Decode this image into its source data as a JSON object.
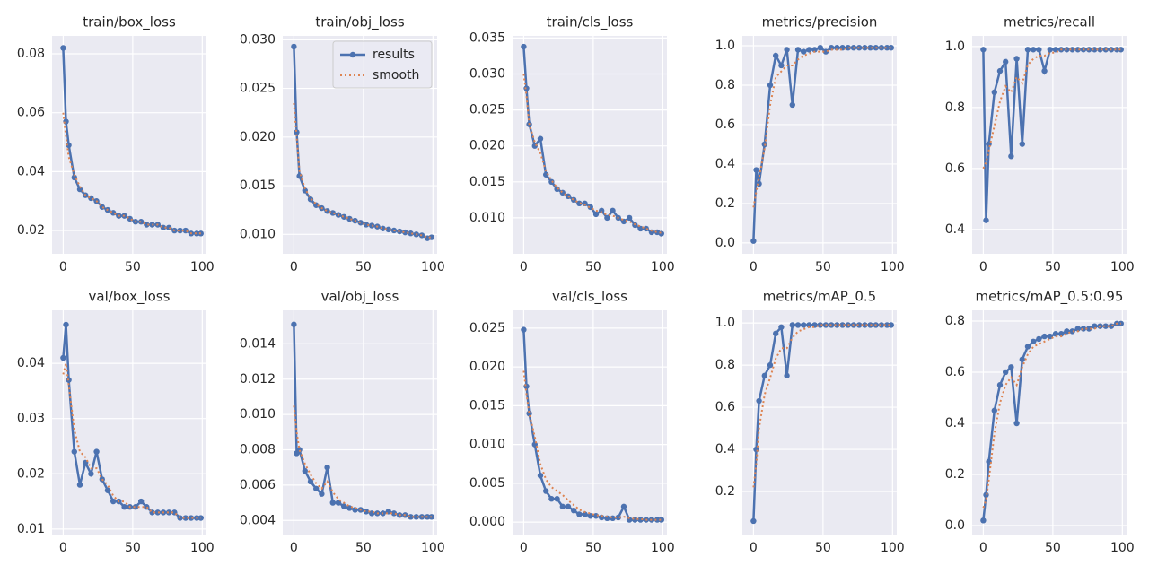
{
  "chart_data": [
    {
      "type": "line",
      "title": "train/box_loss",
      "xlim": [
        -8,
        103
      ],
      "xticks": [
        0,
        50,
        100
      ],
      "ylim": [
        0.0121,
        0.0861
      ],
      "yticks": [
        0.02,
        0.04,
        0.06,
        0.08
      ],
      "grid": true,
      "x": [
        0,
        2,
        4,
        8,
        12,
        16,
        20,
        24,
        28,
        32,
        36,
        40,
        44,
        48,
        52,
        56,
        60,
        64,
        68,
        72,
        76,
        80,
        84,
        88,
        92,
        96,
        99
      ],
      "series": [
        {
          "color": "#4c72b0",
          "values": [
            0.082,
            0.057,
            0.049,
            0.038,
            0.034,
            0.032,
            0.031,
            0.03,
            0.028,
            0.027,
            0.026,
            0.025,
            0.025,
            0.024,
            0.023,
            0.023,
            0.022,
            0.022,
            0.022,
            0.021,
            0.021,
            0.02,
            0.02,
            0.02,
            0.019,
            0.019,
            0.019
          ]
        },
        {
          "color": "#dd8452",
          "values": [
            0.06,
            0.052,
            0.045,
            0.039,
            0.035,
            0.032,
            0.031,
            0.03,
            0.028,
            0.027,
            0.026,
            0.025,
            0.025,
            0.024,
            0.023,
            0.023,
            0.022,
            0.022,
            0.022,
            0.021,
            0.021,
            0.02,
            0.02,
            0.02,
            0.019,
            0.019,
            0.019
          ]
        }
      ]
    },
    {
      "type": "line",
      "title": "train/obj_loss",
      "xlim": [
        -8,
        103
      ],
      "xticks": [
        0,
        50,
        100
      ],
      "ylim": [
        0.008,
        0.0304
      ],
      "yticks": [
        {
          "value": 0.01,
          "label": "0.010"
        },
        0.015,
        {
          "value": 0.02,
          "label": "0.020"
        },
        0.025,
        {
          "value": 0.03,
          "label": "0.030"
        }
      ],
      "grid": true,
      "legend": "upper right",
      "x": [
        0,
        2,
        4,
        8,
        12,
        16,
        20,
        24,
        28,
        32,
        36,
        40,
        44,
        48,
        52,
        56,
        60,
        64,
        68,
        72,
        76,
        80,
        84,
        88,
        92,
        96,
        99
      ],
      "series": [
        {
          "name": "results",
          "color": "#4c72b0",
          "values": [
            0.0293,
            0.0205,
            0.016,
            0.0145,
            0.0136,
            0.013,
            0.0127,
            0.0124,
            0.0122,
            0.012,
            0.0118,
            0.0116,
            0.0114,
            0.0112,
            0.011,
            0.0109,
            0.0108,
            0.0106,
            0.0105,
            0.0104,
            0.0103,
            0.0102,
            0.0101,
            0.01,
            0.0099,
            0.0096,
            0.0097
          ]
        },
        {
          "name": "smooth",
          "color": "#dd8452",
          "values": [
            0.0235,
            0.02,
            0.0165,
            0.0147,
            0.0137,
            0.0131,
            0.0127,
            0.0124,
            0.0122,
            0.012,
            0.0118,
            0.0116,
            0.0114,
            0.0112,
            0.011,
            0.0109,
            0.0108,
            0.0106,
            0.0105,
            0.0104,
            0.0103,
            0.0102,
            0.0101,
            0.01,
            0.0099,
            0.0097,
            0.0097
          ]
        }
      ]
    },
    {
      "type": "line",
      "title": "train/cls_loss",
      "xlim": [
        -8,
        103
      ],
      "xticks": [
        0,
        50,
        100
      ],
      "ylim": [
        0.005,
        0.0353
      ],
      "yticks": [
        {
          "value": 0.01,
          "label": "0.010"
        },
        0.015,
        {
          "value": 0.02,
          "label": "0.020"
        },
        0.025,
        {
          "value": 0.03,
          "label": "0.030"
        },
        0.035
      ],
      "grid": true,
      "x": [
        0,
        2,
        4,
        8,
        12,
        16,
        20,
        24,
        28,
        32,
        36,
        40,
        44,
        48,
        52,
        56,
        60,
        64,
        68,
        72,
        76,
        80,
        84,
        88,
        92,
        96,
        99
      ],
      "series": [
        {
          "color": "#4c72b0",
          "values": [
            0.0338,
            0.028,
            0.023,
            0.02,
            0.021,
            0.016,
            0.015,
            0.014,
            0.0135,
            0.013,
            0.0125,
            0.012,
            0.012,
            0.0115,
            0.0105,
            0.011,
            0.01,
            0.011,
            0.01,
            0.0095,
            0.01,
            0.009,
            0.0085,
            0.0085,
            0.008,
            0.008,
            0.0078
          ]
        },
        {
          "color": "#dd8452",
          "values": [
            0.03,
            0.027,
            0.023,
            0.0205,
            0.019,
            0.0165,
            0.0152,
            0.0142,
            0.0135,
            0.013,
            0.0125,
            0.0121,
            0.0118,
            0.0114,
            0.011,
            0.0108,
            0.0104,
            0.0103,
            0.01,
            0.0097,
            0.0095,
            0.0091,
            0.0088,
            0.0085,
            0.0082,
            0.008,
            0.0079
          ]
        }
      ]
    },
    {
      "type": "line",
      "title": "metrics/precision",
      "xlim": [
        -8,
        103
      ],
      "xticks": [
        0,
        50,
        100
      ],
      "ylim": [
        -0.055,
        1.05
      ],
      "yticks": [
        {
          "value": 0,
          "label": "0.0"
        },
        0.2,
        0.4,
        0.6,
        0.8,
        {
          "value": 1,
          "label": "1.0"
        }
      ],
      "grid": true,
      "x": [
        0,
        2,
        4,
        8,
        12,
        16,
        20,
        24,
        28,
        32,
        36,
        40,
        44,
        48,
        52,
        56,
        60,
        64,
        68,
        72,
        76,
        80,
        84,
        88,
        92,
        96,
        99
      ],
      "series": [
        {
          "color": "#4c72b0",
          "values": [
            0.01,
            0.37,
            0.3,
            0.5,
            0.8,
            0.95,
            0.9,
            0.98,
            0.7,
            0.98,
            0.97,
            0.98,
            0.98,
            0.99,
            0.97,
            0.99,
            0.99,
            0.99,
            0.99,
            0.99,
            0.99,
            0.99,
            0.99,
            0.99,
            0.99,
            0.99,
            0.99
          ]
        },
        {
          "color": "#dd8452",
          "values": [
            0.18,
            0.26,
            0.33,
            0.48,
            0.7,
            0.84,
            0.87,
            0.9,
            0.9,
            0.93,
            0.95,
            0.96,
            0.97,
            0.97,
            0.97,
            0.98,
            0.98,
            0.98,
            0.99,
            0.99,
            0.99,
            0.99,
            0.99,
            0.99,
            0.99,
            0.99,
            0.99
          ]
        }
      ]
    },
    {
      "type": "line",
      "title": "metrics/recall",
      "xlim": [
        -8,
        103
      ],
      "xticks": [
        0,
        50,
        100
      ],
      "ylim": [
        0.32,
        1.035
      ],
      "yticks": [
        0.4,
        0.6,
        0.8,
        {
          "value": 1,
          "label": "1.0"
        }
      ],
      "grid": true,
      "x": [
        0,
        2,
        4,
        8,
        12,
        16,
        20,
        24,
        28,
        32,
        36,
        40,
        44,
        48,
        52,
        56,
        60,
        64,
        68,
        72,
        76,
        80,
        84,
        88,
        92,
        96,
        99
      ],
      "series": [
        {
          "color": "#4c72b0",
          "values": [
            0.99,
            0.43,
            0.68,
            0.85,
            0.92,
            0.95,
            0.64,
            0.96,
            0.68,
            0.99,
            0.99,
            0.99,
            0.92,
            0.99,
            0.99,
            0.99,
            0.99,
            0.99,
            0.99,
            0.99,
            0.99,
            0.99,
            0.99,
            0.99,
            0.99,
            0.99,
            0.99
          ]
        },
        {
          "color": "#dd8452",
          "values": [
            0.6,
            0.62,
            0.66,
            0.74,
            0.82,
            0.87,
            0.85,
            0.9,
            0.88,
            0.94,
            0.96,
            0.97,
            0.97,
            0.98,
            0.98,
            0.99,
            0.99,
            0.99,
            0.99,
            0.99,
            0.99,
            0.99,
            0.99,
            0.99,
            0.99,
            0.99,
            0.99
          ]
        }
      ]
    },
    {
      "type": "line",
      "title": "val/box_loss",
      "xlim": [
        -8,
        103
      ],
      "xticks": [
        0,
        50,
        100
      ],
      "ylim": [
        0.009,
        0.0496
      ],
      "yticks": [
        0.01,
        0.02,
        0.03,
        0.04
      ],
      "grid": true,
      "x": [
        0,
        2,
        4,
        8,
        12,
        16,
        20,
        24,
        28,
        32,
        36,
        40,
        44,
        48,
        52,
        56,
        60,
        64,
        68,
        72,
        76,
        80,
        84,
        88,
        92,
        96,
        99
      ],
      "series": [
        {
          "color": "#4c72b0",
          "values": [
            0.041,
            0.047,
            0.037,
            0.024,
            0.018,
            0.022,
            0.02,
            0.024,
            0.019,
            0.017,
            0.015,
            0.015,
            0.014,
            0.014,
            0.014,
            0.015,
            0.014,
            0.013,
            0.013,
            0.013,
            0.013,
            0.013,
            0.012,
            0.012,
            0.012,
            0.012,
            0.012
          ]
        },
        {
          "color": "#dd8452",
          "values": [
            0.038,
            0.04,
            0.036,
            0.028,
            0.024,
            0.023,
            0.021,
            0.021,
            0.019,
            0.018,
            0.016,
            0.015,
            0.015,
            0.014,
            0.014,
            0.014,
            0.014,
            0.013,
            0.013,
            0.013,
            0.013,
            0.013,
            0.012,
            0.012,
            0.012,
            0.012,
            0.012
          ]
        }
      ]
    },
    {
      "type": "line",
      "title": "val/obj_loss",
      "xlim": [
        -8,
        103
      ],
      "xticks": [
        0,
        50,
        100
      ],
      "ylim": [
        0.0032,
        0.0159
      ],
      "yticks": [
        0.004,
        0.006,
        0.008,
        {
          "value": 0.01,
          "label": "0.010"
        },
        0.012,
        0.014
      ],
      "grid": true,
      "x": [
        0,
        2,
        4,
        8,
        12,
        16,
        20,
        24,
        28,
        32,
        36,
        40,
        44,
        48,
        52,
        56,
        60,
        64,
        68,
        72,
        76,
        80,
        84,
        88,
        92,
        96,
        99
      ],
      "series": [
        {
          "color": "#4c72b0",
          "values": [
            0.0151,
            0.0078,
            0.008,
            0.0068,
            0.0062,
            0.0058,
            0.0055,
            0.007,
            0.005,
            0.005,
            0.0048,
            0.0047,
            0.0046,
            0.0046,
            0.0045,
            0.0044,
            0.0044,
            0.0044,
            0.0045,
            0.0044,
            0.0043,
            0.0043,
            0.0042,
            0.0042,
            0.0042,
            0.0042,
            0.0042
          ]
        },
        {
          "color": "#dd8452",
          "values": [
            0.0105,
            0.009,
            0.008,
            0.0072,
            0.0066,
            0.0061,
            0.0058,
            0.0062,
            0.0056,
            0.0052,
            0.005,
            0.0048,
            0.0047,
            0.0046,
            0.0045,
            0.0045,
            0.0044,
            0.0044,
            0.0044,
            0.0044,
            0.0043,
            0.0043,
            0.0042,
            0.0042,
            0.0042,
            0.0042,
            0.0042
          ]
        }
      ]
    },
    {
      "type": "line",
      "title": "val/cls_loss",
      "xlim": [
        -8,
        103
      ],
      "xticks": [
        0,
        50,
        100
      ],
      "ylim": [
        -0.0016,
        0.0273
      ],
      "yticks": [
        {
          "value": 0,
          "label": "0.000"
        },
        0.005,
        {
          "value": 0.01,
          "label": "0.010"
        },
        0.015,
        {
          "value": 0.02,
          "label": "0.020"
        },
        0.025
      ],
      "grid": true,
      "x": [
        0,
        2,
        4,
        8,
        12,
        16,
        20,
        24,
        28,
        32,
        36,
        40,
        44,
        48,
        52,
        56,
        60,
        64,
        68,
        72,
        76,
        80,
        84,
        88,
        92,
        96,
        99
      ],
      "series": [
        {
          "color": "#4c72b0",
          "values": [
            0.0248,
            0.0175,
            0.014,
            0.01,
            0.006,
            0.004,
            0.003,
            0.003,
            0.002,
            0.002,
            0.0015,
            0.001,
            0.001,
            0.0008,
            0.0008,
            0.0006,
            0.0005,
            0.0005,
            0.0006,
            0.002,
            0.0003,
            0.0003,
            0.0003,
            0.0003,
            0.0003,
            0.0003,
            0.0003
          ]
        },
        {
          "color": "#dd8452",
          "values": [
            0.0195,
            0.0165,
            0.014,
            0.011,
            0.0075,
            0.0055,
            0.0045,
            0.004,
            0.0035,
            0.0028,
            0.0022,
            0.0016,
            0.0013,
            0.0011,
            0.0009,
            0.0008,
            0.0007,
            0.0006,
            0.0006,
            0.0007,
            0.0005,
            0.0004,
            0.0004,
            0.0003,
            0.0003,
            0.0003,
            0.0003
          ]
        }
      ]
    },
    {
      "type": "line",
      "title": "metrics/mAP_0.5",
      "xlim": [
        -8,
        103
      ],
      "xticks": [
        0,
        50,
        100
      ],
      "ylim": [
        -0.004,
        1.06
      ],
      "yticks": [
        0.2,
        0.4,
        0.6,
        0.8,
        {
          "value": 1,
          "label": "1.0"
        }
      ],
      "grid": true,
      "x": [
        0,
        2,
        4,
        8,
        12,
        16,
        20,
        24,
        28,
        32,
        36,
        40,
        44,
        48,
        52,
        56,
        60,
        64,
        68,
        72,
        76,
        80,
        84,
        88,
        92,
        96,
        99
      ],
      "series": [
        {
          "color": "#4c72b0",
          "values": [
            0.06,
            0.4,
            0.63,
            0.75,
            0.8,
            0.95,
            0.98,
            0.75,
            0.99,
            0.99,
            0.99,
            0.99,
            0.99,
            0.99,
            0.99,
            0.99,
            0.99,
            0.99,
            0.99,
            0.99,
            0.99,
            0.99,
            0.99,
            0.99,
            0.99,
            0.99,
            0.99
          ]
        },
        {
          "color": "#dd8452",
          "values": [
            0.22,
            0.33,
            0.5,
            0.66,
            0.74,
            0.83,
            0.88,
            0.88,
            0.93,
            0.96,
            0.97,
            0.98,
            0.98,
            0.99,
            0.99,
            0.99,
            0.99,
            0.99,
            0.99,
            0.99,
            0.99,
            0.99,
            0.99,
            0.99,
            0.99,
            0.99,
            0.99
          ]
        }
      ]
    },
    {
      "type": "line",
      "title": "metrics/mAP_0.5:0.95",
      "xlim": [
        -8,
        103
      ],
      "xticks": [
        0,
        50,
        100
      ],
      "ylim": [
        -0.035,
        0.842
      ],
      "yticks": [
        {
          "value": 0,
          "label": "0.0"
        },
        0.2,
        0.4,
        0.6,
        0.8
      ],
      "grid": true,
      "x": [
        0,
        2,
        4,
        8,
        12,
        16,
        20,
        24,
        28,
        32,
        36,
        40,
        44,
        48,
        52,
        56,
        60,
        64,
        68,
        72,
        76,
        80,
        84,
        88,
        92,
        96,
        99
      ],
      "series": [
        {
          "color": "#4c72b0",
          "values": [
            0.02,
            0.12,
            0.25,
            0.45,
            0.55,
            0.6,
            0.62,
            0.4,
            0.65,
            0.7,
            0.72,
            0.73,
            0.74,
            0.74,
            0.75,
            0.75,
            0.76,
            0.76,
            0.77,
            0.77,
            0.77,
            0.78,
            0.78,
            0.78,
            0.78,
            0.79,
            0.79
          ]
        },
        {
          "color": "#dd8452",
          "values": [
            0.07,
            0.1,
            0.18,
            0.36,
            0.48,
            0.55,
            0.58,
            0.55,
            0.62,
            0.67,
            0.7,
            0.71,
            0.72,
            0.73,
            0.74,
            0.74,
            0.75,
            0.76,
            0.76,
            0.77,
            0.77,
            0.77,
            0.78,
            0.78,
            0.78,
            0.79,
            0.79
          ]
        }
      ]
    }
  ]
}
